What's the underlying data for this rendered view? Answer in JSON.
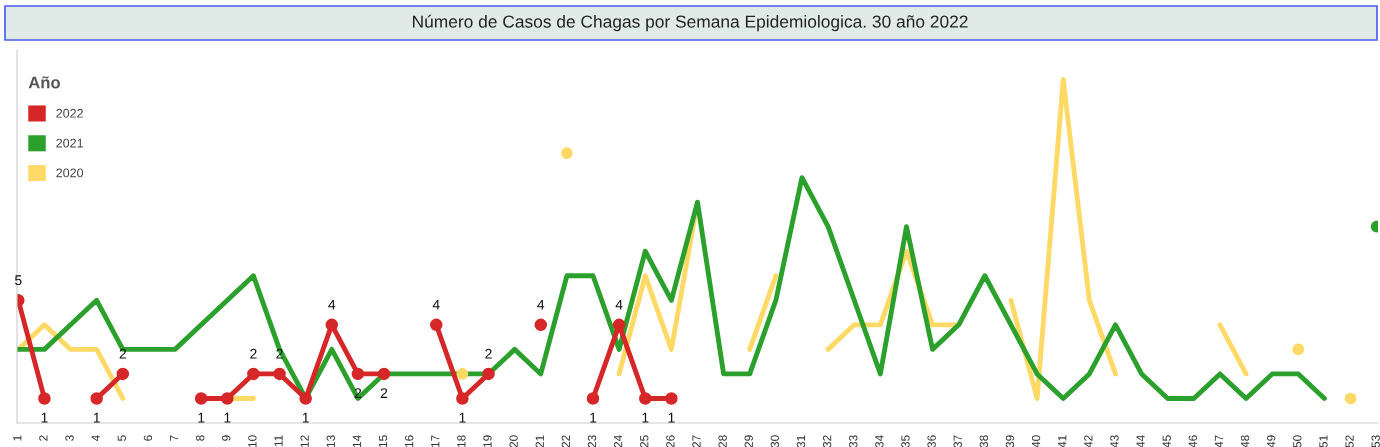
{
  "chart_data": {
    "type": "line",
    "title": "Número de Casos de Chagas por Semana Epidemiologica. 30 año 2022",
    "legend_title": "Año",
    "categories": [
      "1",
      "2",
      "3",
      "4",
      "5",
      "6",
      "7",
      "8",
      "9",
      "10",
      "11",
      "12",
      "13",
      "14",
      "15",
      "16",
      "17",
      "18",
      "19",
      "20",
      "21",
      "22",
      "23",
      "24",
      "25",
      "26",
      "27",
      "28",
      "29",
      "30",
      "31",
      "32",
      "33",
      "34",
      "35",
      "36",
      "37",
      "38",
      "39",
      "40",
      "41",
      "42",
      "43",
      "44",
      "45",
      "46",
      "47",
      "48",
      "49",
      "50",
      "51",
      "52",
      "53"
    ],
    "series": [
      {
        "name": "2022",
        "color": "#d62728",
        "marker": "circle",
        "values": [
          5,
          1,
          null,
          1,
          2,
          null,
          null,
          1,
          1,
          2,
          2,
          1,
          4,
          2,
          2,
          null,
          4,
          1,
          2,
          null,
          4,
          null,
          1,
          4,
          1,
          1,
          null,
          null,
          null,
          null,
          null,
          null,
          null,
          null,
          null,
          null,
          null,
          null,
          null,
          null,
          null,
          null,
          null,
          null,
          null,
          null,
          null,
          null,
          null,
          null,
          null,
          null,
          null
        ],
        "value_labels": [
          "5",
          "1",
          null,
          "1",
          "2",
          null,
          null,
          "1",
          "1",
          "2",
          "2",
          "1",
          "4",
          "2",
          "2",
          null,
          "4",
          "1",
          "2",
          null,
          "4",
          null,
          "1",
          "4",
          "1",
          "1",
          null,
          null,
          null,
          null,
          null,
          null,
          null,
          null,
          null,
          null,
          null,
          null,
          null,
          null,
          null,
          null,
          null,
          null,
          null,
          null,
          null,
          null,
          null,
          null,
          null,
          null,
          null
        ]
      },
      {
        "name": "2021",
        "color": "#2ca02c",
        "values": [
          3,
          3,
          4,
          5,
          3,
          3,
          3,
          4,
          5,
          6,
          3,
          1,
          3,
          1,
          2,
          2,
          2,
          2,
          2,
          3,
          2,
          6,
          6,
          3,
          7,
          5,
          9,
          2,
          2,
          5,
          10,
          8,
          5,
          2,
          8,
          3,
          4,
          6,
          4,
          2,
          1,
          2,
          4,
          2,
          1,
          1,
          2,
          1,
          2,
          2,
          1,
          null,
          8
        ]
      },
      {
        "name": "2020",
        "color": "#ffd966",
        "values": [
          3,
          4,
          3,
          3,
          1,
          null,
          null,
          null,
          1,
          1,
          null,
          null,
          null,
          null,
          null,
          null,
          null,
          2,
          null,
          null,
          null,
          11,
          null,
          2,
          6,
          3,
          9,
          null,
          3,
          6,
          null,
          3,
          4,
          4,
          7,
          4,
          4,
          null,
          5,
          1,
          14,
          5,
          2,
          null,
          null,
          null,
          4,
          2,
          null,
          3,
          null,
          1,
          null
        ]
      }
    ],
    "ylim": [
      0,
      15.2
    ],
    "legend": "top left",
    "grid": false
  }
}
